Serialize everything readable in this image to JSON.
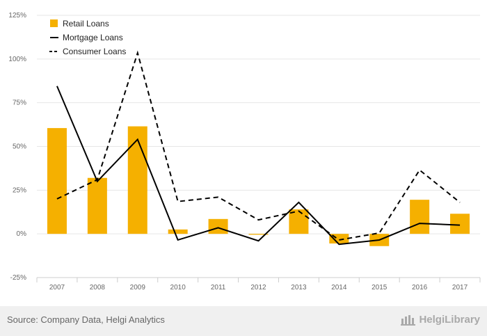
{
  "chart_data": {
    "type": "bar",
    "categories": [
      "2007",
      "2008",
      "2009",
      "2010",
      "2011",
      "2012",
      "2013",
      "2014",
      "2015",
      "2016",
      "2017"
    ],
    "series": [
      {
        "name": "Retail Loans",
        "type": "bar",
        "color": "#f5b000",
        "values": [
          60.5,
          32,
          61.5,
          2.5,
          8.5,
          -0.5,
          14,
          -5.5,
          -7,
          19.5,
          11.5
        ]
      },
      {
        "name": "Mortgage Loans",
        "type": "line",
        "style": "solid",
        "color": "#000000",
        "values": [
          84.5,
          30,
          54,
          -3.5,
          3.5,
          -4,
          18,
          -6,
          -3.5,
          6,
          5
        ]
      },
      {
        "name": "Consumer Loans",
        "type": "line",
        "style": "dashed",
        "color": "#000000",
        "values": [
          20,
          31,
          103.5,
          18.5,
          21,
          8,
          13,
          -3.5,
          0.5,
          36.5,
          18
        ]
      }
    ],
    "yticks": [
      "125%",
      "100%",
      "75%",
      "50%",
      "25%",
      "0%",
      "-25%"
    ],
    "ylim": [
      -25,
      125
    ],
    "grid": "horizontal",
    "legend_position": "top-left"
  },
  "footer": {
    "source": "Source: Company Data, Helgi Analytics",
    "brand": "HelgiLibrary"
  },
  "colors": {
    "bar": "#f5b000",
    "line": "#000000",
    "grid": "#e6e6e6",
    "footer_bg": "#f0f0f0"
  }
}
